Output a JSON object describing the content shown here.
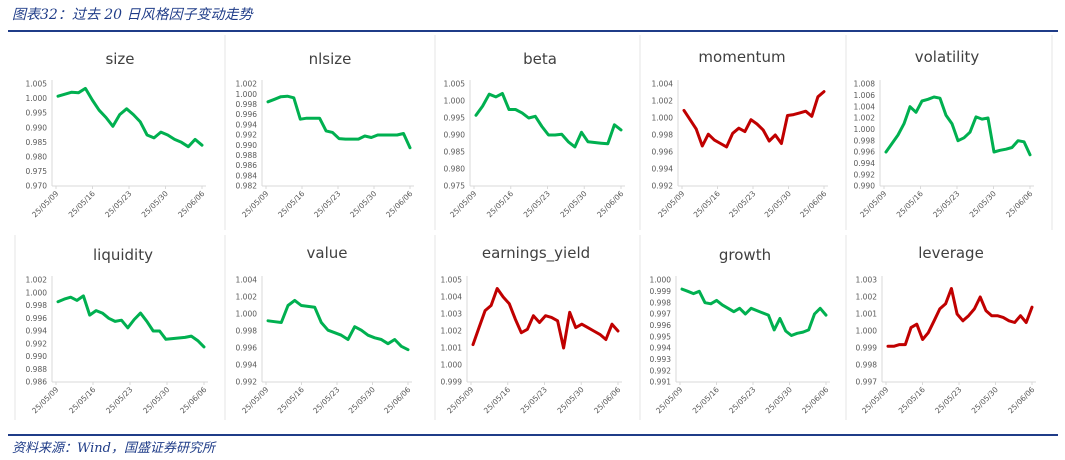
{
  "figure": {
    "title": "图表32：过去 20 日风格因子变动走势",
    "source": "资料来源：Wind，国盛证券研究所"
  },
  "colors": {
    "up": "#00b050",
    "down": "#c00000",
    "axis": "#d9d9d9",
    "text": "#595959",
    "title": "#1f3c88"
  },
  "chart_data": [
    {
      "type": "line",
      "title": "size",
      "color": "#00b050",
      "x_ticks": [
        "25/05/09",
        "25/05/16",
        "25/05/23",
        "25/05/30",
        "25/06/06"
      ],
      "y_ticks": [
        "0.970",
        "0.975",
        "0.980",
        "0.985",
        "0.990",
        "0.995",
        "1.000",
        "1.005"
      ],
      "ylim": [
        0.97,
        1.005
      ],
      "values": [
        1.0008,
        1.0015,
        1.0022,
        1.002,
        1.0035,
        0.9995,
        0.996,
        0.9935,
        0.9905,
        0.9945,
        0.9965,
        0.9945,
        0.992,
        0.9875,
        0.9865,
        0.9885,
        0.9875,
        0.986,
        0.985,
        0.9835,
        0.986,
        0.984
      ]
    },
    {
      "type": "line",
      "title": "nlsize",
      "color": "#00b050",
      "x_ticks": [
        "25/05/09",
        "25/05/16",
        "25/05/23",
        "25/05/30",
        "25/06/06"
      ],
      "y_ticks": [
        "0.982",
        "0.984",
        "0.986",
        "0.988",
        "0.990",
        "0.992",
        "0.994",
        "0.996",
        "0.998",
        "1.000",
        "1.002"
      ],
      "ylim": [
        0.982,
        1.002
      ],
      "values": [
        0.9985,
        0.999,
        0.9995,
        0.9996,
        0.9993,
        0.9951,
        0.9953,
        0.9953,
        0.9953,
        0.9928,
        0.9925,
        0.9913,
        0.9912,
        0.9912,
        0.9912,
        0.9918,
        0.9915,
        0.992,
        0.992,
        0.992,
        0.992,
        0.9923,
        0.9895
      ]
    },
    {
      "type": "line",
      "title": "beta",
      "color": "#00b050",
      "x_ticks": [
        "25/05/09",
        "25/05/16",
        "25/05/23",
        "25/05/30",
        "25/06/06"
      ],
      "y_ticks": [
        "0.975",
        "0.980",
        "0.985",
        "0.990",
        "0.995",
        "1.000",
        "1.005"
      ],
      "ylim": [
        0.975,
        1.005
      ],
      "values": [
        0.9958,
        0.9985,
        1.002,
        1.0012,
        1.0022,
        0.9975,
        0.9975,
        0.9965,
        0.995,
        0.9955,
        0.9925,
        0.99,
        0.99,
        0.9902,
        0.988,
        0.9865,
        0.9908,
        0.988,
        0.9878,
        0.9876,
        0.9874,
        0.993,
        0.9915
      ]
    },
    {
      "type": "line",
      "title": "momentum",
      "color": "#c00000",
      "x_ticks": [
        "25/05/09",
        "25/05/16",
        "25/05/23",
        "25/05/30",
        "25/06/06"
      ],
      "y_ticks": [
        "0.992",
        "0.994",
        "0.996",
        "0.998",
        "1.000",
        "1.002",
        "1.004"
      ],
      "ylim": [
        0.992,
        1.004
      ],
      "values": [
        1.0009,
        0.9998,
        0.9987,
        0.9967,
        0.9981,
        0.9974,
        0.997,
        0.9966,
        0.9982,
        0.9988,
        0.9984,
        0.9998,
        0.9993,
        0.9986,
        0.9973,
        0.998,
        0.997,
        1.0003,
        1.0004,
        1.0006,
        1.0008,
        1.0002,
        1.0025,
        1.0031
      ]
    },
    {
      "type": "line",
      "title": "volatility",
      "color": "#00b050",
      "x_ticks": [
        "25/05/09",
        "25/05/16",
        "25/05/23",
        "25/05/30",
        "25/06/06"
      ],
      "y_ticks": [
        "0.990",
        "0.992",
        "0.994",
        "0.996",
        "0.998",
        "1.000",
        "1.002",
        "1.004",
        "1.006",
        "1.008"
      ],
      "ylim": [
        0.99,
        1.008
      ],
      "values": [
        0.996,
        0.9975,
        0.999,
        1.001,
        1.004,
        1.003,
        1.005,
        1.0053,
        1.0057,
        1.0055,
        1.0025,
        1.001,
        0.998,
        0.9985,
        0.9995,
        1.0022,
        1.0018,
        1.002,
        0.996,
        0.9963,
        0.9965,
        0.9968,
        0.998,
        0.9978,
        0.9955
      ]
    },
    {
      "type": "line",
      "title": "liquidity",
      "color": "#00b050",
      "x_ticks": [
        "25/05/09",
        "25/05/16",
        "25/05/23",
        "25/05/30",
        "25/06/06"
      ],
      "y_ticks": [
        "0.986",
        "0.988",
        "0.990",
        "0.992",
        "0.994",
        "0.996",
        "0.998",
        "1.000",
        "1.002"
      ],
      "ylim": [
        0.986,
        1.002
      ],
      "values": [
        0.9986,
        0.999,
        0.9993,
        0.9988,
        0.9995,
        0.9965,
        0.9972,
        0.9968,
        0.996,
        0.9955,
        0.9957,
        0.9945,
        0.9958,
        0.9968,
        0.9955,
        0.994,
        0.994,
        0.9927,
        0.9928,
        0.9929,
        0.993,
        0.9932,
        0.9925,
        0.9915
      ]
    },
    {
      "type": "line",
      "title": "value",
      "color": "#00b050",
      "x_ticks": [
        "25/05/09",
        "25/05/16",
        "25/05/23",
        "25/05/30",
        "25/06/06"
      ],
      "y_ticks": [
        "0.992",
        "0.994",
        "0.996",
        "0.998",
        "1.000",
        "1.002",
        "1.004"
      ],
      "ylim": [
        0.992,
        1.004
      ],
      "values": [
        0.9992,
        0.9991,
        0.999,
        1.001,
        1.0016,
        1.001,
        1.0009,
        1.0008,
        0.999,
        0.9981,
        0.9978,
        0.9975,
        0.997,
        0.9985,
        0.9981,
        0.9975,
        0.9972,
        0.997,
        0.9965,
        0.997,
        0.9962,
        0.9958
      ]
    },
    {
      "type": "line",
      "title": "earnings_yield",
      "color": "#c00000",
      "x_ticks": [
        "25/05/09",
        "25/05/16",
        "25/05/23",
        "25/05/30",
        "25/06/06"
      ],
      "y_ticks": [
        "0.999",
        "1.000",
        "1.001",
        "1.002",
        "1.003",
        "1.004",
        "1.005"
      ],
      "ylim": [
        0.999,
        1.005
      ],
      "values": [
        1.0012,
        1.0022,
        1.0032,
        1.0035,
        1.0045,
        1.004,
        1.0036,
        1.0027,
        1.0019,
        1.0021,
        1.0029,
        1.0025,
        1.0029,
        1.0028,
        1.0026,
        1.001,
        1.0031,
        1.0022,
        1.0024,
        1.0022,
        1.002,
        1.0018,
        1.0015,
        1.0024,
        1.002
      ]
    },
    {
      "type": "line",
      "title": "growth",
      "color": "#00b050",
      "x_ticks": [
        "25/05/09",
        "25/05/16",
        "25/05/23",
        "25/05/30",
        "25/06/06"
      ],
      "y_ticks": [
        "0.991",
        "0.992",
        "0.993",
        "0.994",
        "0.995",
        "0.996",
        "0.997",
        "0.998",
        "0.999",
        "1.000"
      ],
      "ylim": [
        0.991,
        1.0
      ],
      "values": [
        0.9992,
        0.999,
        0.9988,
        0.999,
        0.998,
        0.9979,
        0.9982,
        0.9978,
        0.9975,
        0.9972,
        0.9975,
        0.997,
        0.9975,
        0.9973,
        0.9971,
        0.9969,
        0.9956,
        0.9966,
        0.9955,
        0.9951,
        0.9953,
        0.9954,
        0.9956,
        0.997,
        0.9975,
        0.9969
      ]
    },
    {
      "type": "line",
      "title": "leverage",
      "color": "#c00000",
      "x_ticks": [
        "25/05/09",
        "25/05/16",
        "25/05/23",
        "25/05/30",
        "25/06/06"
      ],
      "y_ticks": [
        "0.997",
        "0.998",
        "0.999",
        "1.000",
        "1.001",
        "1.002",
        "1.003"
      ],
      "ylim": [
        0.997,
        1.003
      ],
      "values": [
        0.9991,
        0.9991,
        0.9992,
        0.9992,
        1.0002,
        1.0004,
        0.9995,
        0.9999,
        1.0006,
        1.0013,
        1.0016,
        1.0025,
        1.001,
        1.0006,
        1.0009,
        1.0013,
        1.002,
        1.0012,
        1.0009,
        1.0009,
        1.0008,
        1.0006,
        1.0005,
        1.0009,
        1.0005,
        1.0014
      ]
    }
  ]
}
